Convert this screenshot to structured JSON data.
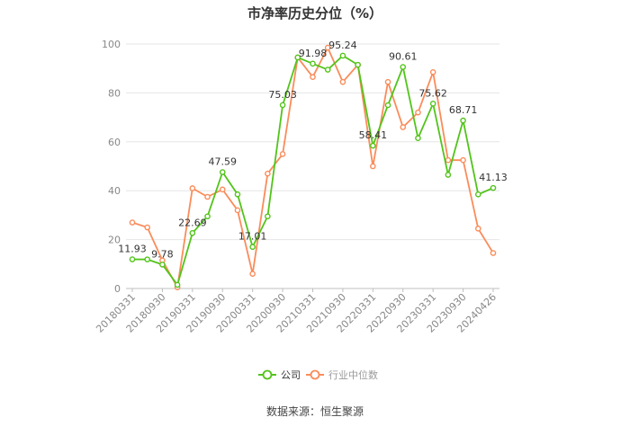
{
  "title": "市净率历史分位（%）",
  "source": "数据来源：恒生聚源",
  "chart_data": {
    "type": "line",
    "title": "市净率历史分位（%）",
    "xlabel": "",
    "ylabel": "",
    "ylim": [
      0,
      100
    ],
    "y_ticks": [
      "0",
      "20",
      "40",
      "60",
      "80",
      "100"
    ],
    "grid": true,
    "legend_position": "bottom",
    "x_tick_labels": [
      "20180331",
      "20180930",
      "20190331",
      "20190930",
      "20200331",
      "20200930",
      "20210331",
      "20210930",
      "20220331",
      "20220930",
      "20230331",
      "20230930",
      "20240426"
    ],
    "x": [
      "20180331",
      "20180630",
      "20180930",
      "20181231",
      "20190331",
      "20190630",
      "20190930",
      "20191231",
      "20200331",
      "20200630",
      "20200930",
      "20201231",
      "20210331",
      "20210630",
      "20210930",
      "20211231",
      "20220331",
      "20220630",
      "20220930",
      "20221231",
      "20230331",
      "20230630",
      "20230930",
      "20231231",
      "20240426"
    ],
    "series": [
      {
        "name": "公司",
        "color": "#52c41a",
        "values": [
          11.93,
          11.9,
          9.78,
          1.5,
          22.69,
          29.5,
          47.59,
          38.5,
          17.01,
          29.5,
          75.03,
          94.5,
          91.98,
          89.5,
          95.24,
          91.5,
          58.41,
          75.0,
          90.61,
          61.5,
          75.62,
          46.5,
          68.71,
          38.5,
          41.13
        ]
      },
      {
        "name": "行业中位数",
        "color": "#fa8c5a",
        "values": [
          27.0,
          25.0,
          11.5,
          0.5,
          41.0,
          37.5,
          40.5,
          32.0,
          6.0,
          47.0,
          55.0,
          94.5,
          86.5,
          98.5,
          84.5,
          91.5,
          50.0,
          84.5,
          66.0,
          72.0,
          88.5,
          52.5,
          52.5,
          24.5,
          14.5
        ]
      }
    ],
    "data_labels": [
      {
        "series": 0,
        "index": 0,
        "text": "11.93"
      },
      {
        "series": 0,
        "index": 2,
        "text": "9.78"
      },
      {
        "series": 0,
        "index": 4,
        "text": "22.69"
      },
      {
        "series": 0,
        "index": 6,
        "text": "47.59"
      },
      {
        "series": 0,
        "index": 8,
        "text": "17.01"
      },
      {
        "series": 0,
        "index": 10,
        "text": "75.03"
      },
      {
        "series": 0,
        "index": 12,
        "text": "91.98"
      },
      {
        "series": 0,
        "index": 14,
        "text": "95.24"
      },
      {
        "series": 0,
        "index": 16,
        "text": "58.41"
      },
      {
        "series": 0,
        "index": 18,
        "text": "90.61"
      },
      {
        "series": 0,
        "index": 20,
        "text": "75.62"
      },
      {
        "series": 0,
        "index": 22,
        "text": "68.71"
      },
      {
        "series": 0,
        "index": 24,
        "text": "41.13"
      }
    ]
  }
}
